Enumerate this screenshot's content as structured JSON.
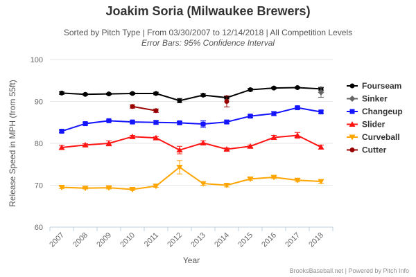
{
  "chart_data": {
    "type": "line",
    "title": "Joakim Soria (Milwaukee Brewers)",
    "subtitle": "Sorted by Pitch Type | From 03/30/2007 to 12/14/2018 | All Competition Levels",
    "subtitle2": "Error Bars: 95% Confidence Interval",
    "xlabel": "Year",
    "ylabel": "Release Speed in MPH (from 55ft)",
    "ylim": [
      60,
      100
    ],
    "yticks": [
      "60",
      "70",
      "80",
      "90",
      "100"
    ],
    "categories": [
      "2007",
      "2008",
      "2009",
      "2010",
      "2011",
      "2012",
      "2013",
      "2014",
      "2015",
      "2016",
      "2017",
      "2018"
    ],
    "grid": "horizontal",
    "legend_position": "right",
    "series": [
      {
        "name": "Fourseam",
        "color": "#000000",
        "marker": "circle",
        "values": [
          92.0,
          91.7,
          91.8,
          91.9,
          91.9,
          90.2,
          91.5,
          90.9,
          92.8,
          93.2,
          93.3,
          93.0
        ],
        "err": [
          0.3,
          0.2,
          0.2,
          0.2,
          0.3,
          0.5,
          0.3,
          0.3,
          0.3,
          0.2,
          0.2,
          0.3
        ]
      },
      {
        "name": "Sinker",
        "color": "#666666",
        "marker": "diamond",
        "values": [
          null,
          null,
          null,
          null,
          null,
          null,
          null,
          null,
          null,
          null,
          null,
          92.2
        ],
        "err": [
          null,
          null,
          null,
          null,
          null,
          null,
          null,
          null,
          null,
          null,
          null,
          1.2
        ]
      },
      {
        "name": "Changeup",
        "color": "#1414ff",
        "marker": "square",
        "values": [
          82.9,
          84.7,
          85.4,
          85.1,
          85.0,
          84.9,
          84.6,
          85.1,
          86.5,
          87.1,
          88.5,
          87.5
        ],
        "err": [
          0.3,
          0.3,
          0.2,
          0.3,
          0.4,
          0.3,
          0.8,
          0.4,
          0.3,
          0.5,
          0.3,
          0.3
        ]
      },
      {
        "name": "Slider",
        "color": "#ff1414",
        "marker": "triangle",
        "values": [
          79.0,
          79.6,
          80.0,
          81.6,
          81.3,
          78.4,
          80.1,
          78.6,
          79.3,
          81.4,
          81.9,
          79.1
        ],
        "err": [
          0.5,
          0.3,
          0.6,
          0.3,
          0.3,
          0.9,
          0.5,
          0.3,
          0.3,
          0.5,
          0.7,
          0.5
        ]
      },
      {
        "name": "Curveball",
        "color": "#ffa500",
        "marker": "triangle-down",
        "values": [
          69.5,
          69.3,
          69.4,
          69.0,
          69.8,
          74.3,
          70.4,
          70.0,
          71.5,
          71.9,
          71.2,
          70.9
        ],
        "err": [
          0.3,
          0.2,
          0.3,
          0.3,
          0.3,
          1.6,
          0.4,
          0.4,
          0.3,
          0.3,
          0.4,
          0.4
        ]
      },
      {
        "name": "Cutter",
        "color": "#990000",
        "marker": "circle",
        "values": [
          null,
          null,
          null,
          88.8,
          87.8,
          null,
          null,
          90.0,
          null,
          null,
          null,
          null
        ],
        "err": [
          null,
          null,
          null,
          0.4,
          0.4,
          null,
          null,
          1.3,
          null,
          null,
          null,
          null
        ]
      }
    ]
  },
  "credits": "BrooksBaseball.net | Powered by Pitch Info"
}
